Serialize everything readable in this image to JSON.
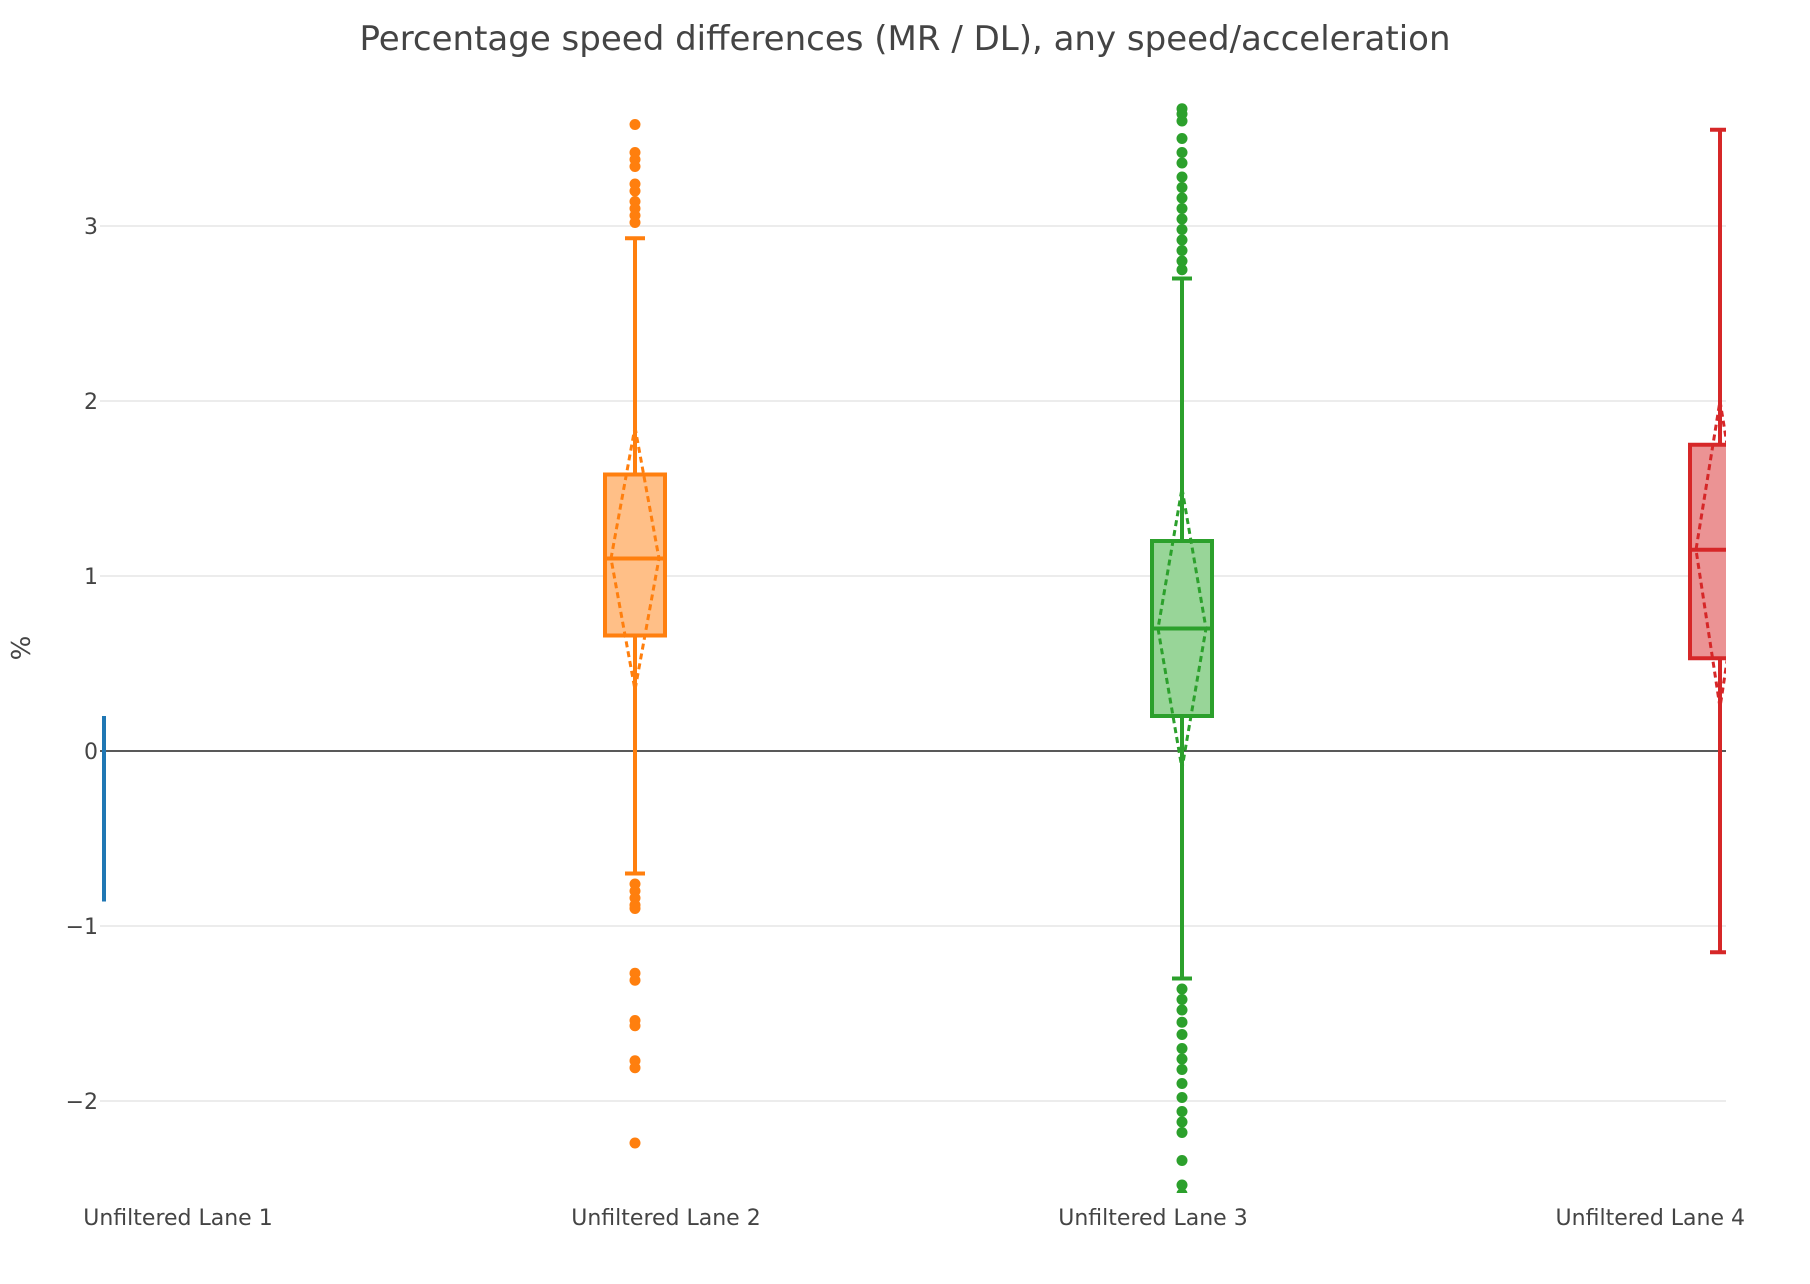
{
  "chart_data": {
    "type": "box",
    "title": "Percentage speed differences (MR / DL), any speed/acceleration",
    "xlabel": "",
    "ylabel": "%",
    "ylim": [
      -2.6,
      3.75
    ],
    "yticks": [
      {
        "value": -2,
        "label": "−2"
      },
      {
        "value": -1,
        "label": "−1"
      },
      {
        "value": 0,
        "label": "0"
      },
      {
        "value": 1,
        "label": "1"
      },
      {
        "value": 2,
        "label": "2"
      },
      {
        "value": 3,
        "label": "3"
      }
    ],
    "zero_line": true,
    "grid": true,
    "legend": "none",
    "categories": [
      "Unfiltered Lane 1",
      "Unfiltered Lane 2",
      "Unfiltered Lane 3",
      "Unfiltered Lane 4"
    ],
    "series": [
      {
        "category": "Unfiltered Lane 1",
        "color": "#1f77b4",
        "whisker_low": -0.86,
        "whisker_high": 0.2,
        "outliers": []
      },
      {
        "category": "Unfiltered Lane 2",
        "color": "#ff7f0e",
        "fill": "#ffbf87",
        "q1": 0.66,
        "median": 1.1,
        "q3": 1.58,
        "whisker_low": -0.7,
        "whisker_high": 2.93,
        "mean": 1.1,
        "sd_low": 0.35,
        "sd_high": 1.85,
        "outliers": [
          3.58,
          3.42,
          3.38,
          3.34,
          3.24,
          3.2,
          3.14,
          3.1,
          3.06,
          3.02,
          -0.76,
          -0.8,
          -0.84,
          -0.88,
          -0.9,
          -1.27,
          -1.31,
          -1.54,
          -1.57,
          -1.77,
          -1.81,
          -2.24
        ]
      },
      {
        "category": "Unfiltered Lane 3",
        "color": "#2ca02c",
        "fill": "#98d598",
        "q1": 0.2,
        "median": 0.7,
        "q3": 1.2,
        "whisker_low": -1.3,
        "whisker_high": 2.7,
        "mean": 0.7,
        "sd_low": -0.1,
        "sd_high": 1.5,
        "outliers": [
          3.67,
          3.64,
          3.6,
          3.5,
          3.42,
          3.36,
          3.28,
          3.22,
          3.16,
          3.1,
          3.04,
          2.98,
          2.92,
          2.86,
          2.8,
          2.75,
          -1.36,
          -1.42,
          -1.48,
          -1.55,
          -1.62,
          -1.7,
          -1.76,
          -1.82,
          -1.9,
          -1.98,
          -2.06,
          -2.12,
          -2.18,
          -2.34,
          -2.48,
          -2.53
        ]
      },
      {
        "category": "Unfiltered Lane 4",
        "color": "#d62728",
        "fill": "#eb9394",
        "q1": 0.53,
        "median": 1.15,
        "q3": 1.75,
        "mean": 1.15,
        "sd_low": 0.25,
        "sd_high": 2.0,
        "whisker_low": -1.15,
        "whisker_high": 3.55,
        "outliers": []
      }
    ]
  }
}
